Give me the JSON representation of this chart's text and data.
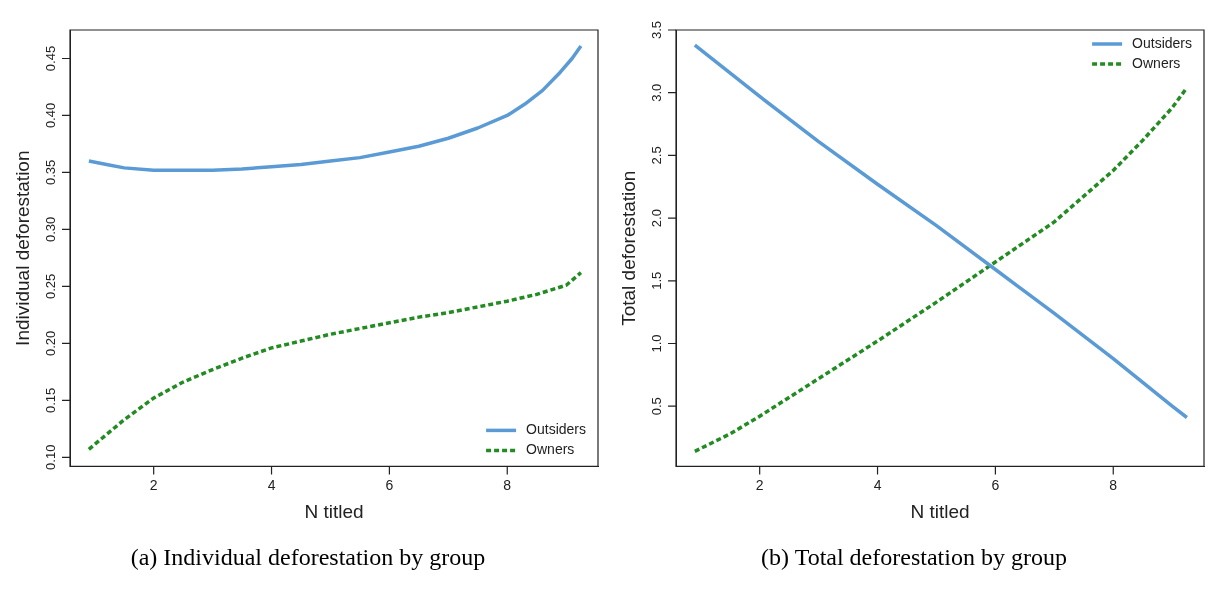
{
  "chart_data": [
    {
      "type": "line",
      "xlabel": "N titled",
      "ylabel": "Individual deforestation",
      "annotations": [
        "(a) Individual deforestation by group"
      ],
      "xlim": [
        0.58,
        9.54
      ],
      "xticks": [
        2,
        4,
        6,
        8
      ],
      "ylim": [
        0.092,
        0.475
      ],
      "yticks": [
        {
          "value": 0.1,
          "label": "0.10"
        },
        {
          "value": 0.15,
          "label": "0.15"
        },
        {
          "value": 0.2,
          "label": "0.20"
        },
        {
          "value": 0.25,
          "label": "0.25"
        },
        {
          "value": 0.3,
          "label": "0.30"
        },
        {
          "value": 0.35,
          "label": "0.35"
        },
        {
          "value": 0.4,
          "label": "0.40"
        },
        {
          "value": 0.45,
          "label": "0.45"
        }
      ],
      "grid": false,
      "legend": "bottom right",
      "marker": "none",
      "series": [
        {
          "name": "Outsiders",
          "color": "#5b9bd5",
          "line_style": "solid",
          "x": [
            0.9,
            1.2,
            1.5,
            2,
            2.5,
            3,
            3.5,
            4,
            4.5,
            5,
            5.5,
            6,
            6.5,
            7,
            7.5,
            8,
            8.3,
            8.6,
            8.9,
            9.1,
            9.25
          ],
          "values": [
            0.36,
            0.357,
            0.354,
            0.352,
            0.352,
            0.352,
            0.353,
            0.355,
            0.357,
            0.36,
            0.363,
            0.368,
            0.373,
            0.38,
            0.389,
            0.4,
            0.41,
            0.422,
            0.438,
            0.45,
            0.461
          ]
        },
        {
          "name": "Owners",
          "color": "#228b22",
          "line_style": "dashed",
          "x": [
            0.9,
            1.2,
            1.5,
            2,
            2.5,
            3,
            3.5,
            4,
            4.5,
            5,
            5.5,
            6,
            6.5,
            7,
            7.5,
            8,
            8.5,
            9,
            9.25
          ],
          "values": [
            0.107,
            0.12,
            0.133,
            0.152,
            0.166,
            0.177,
            0.187,
            0.196,
            0.202,
            0.208,
            0.213,
            0.218,
            0.223,
            0.227,
            0.232,
            0.237,
            0.243,
            0.251,
            0.262
          ]
        }
      ]
    },
    {
      "type": "line",
      "xlabel": "N titled",
      "ylabel": "Total deforestation",
      "annotations": [
        "(b) Total deforestation by group"
      ],
      "xlim": [
        0.58,
        9.54
      ],
      "xticks": [
        2,
        4,
        6,
        8
      ],
      "ylim": [
        0.02,
        3.5
      ],
      "yticks": [
        {
          "value": 0.5,
          "label": "0.5"
        },
        {
          "value": 1,
          "label": "1.0"
        },
        {
          "value": 1.5,
          "label": "1.5"
        },
        {
          "value": 2,
          "label": "2.0"
        },
        {
          "value": 2.5,
          "label": "2.5"
        },
        {
          "value": 3,
          "label": "3.0"
        },
        {
          "value": 3.5,
          "label": "3.5"
        }
      ],
      "grid": false,
      "legend": "top right",
      "marker": "none",
      "series": [
        {
          "name": "Outsiders",
          "color": "#5b9bd5",
          "line_style": "solid",
          "x": [
            0.9,
            2,
            3,
            4,
            5,
            6,
            7,
            8,
            9,
            9.25
          ],
          "values": [
            3.38,
            2.97,
            2.61,
            2.27,
            1.94,
            1.59,
            1.24,
            0.88,
            0.5,
            0.41
          ]
        },
        {
          "name": "Owners",
          "color": "#228b22",
          "line_style": "dashed",
          "x": [
            0.9,
            1.5,
            2,
            3,
            4,
            5,
            6,
            7,
            8,
            8.5,
            9,
            9.25
          ],
          "values": [
            0.14,
            0.28,
            0.42,
            0.72,
            1.02,
            1.33,
            1.65,
            1.97,
            2.38,
            2.62,
            2.88,
            3.04
          ]
        }
      ]
    }
  ]
}
